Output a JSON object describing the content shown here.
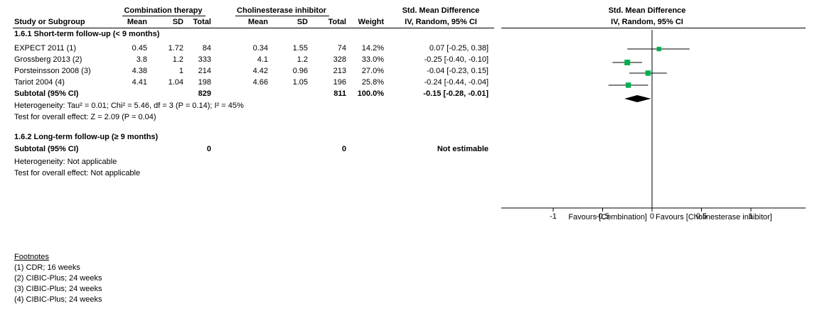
{
  "header": {
    "group1": "Combination therapy",
    "group2": "Cholinesterase inhibitor",
    "effect_top": "Std. Mean Difference",
    "effect_sub": "IV, Random, 95% CI",
    "plot_top": "Std. Mean Difference",
    "plot_sub": "IV, Random, 95% CI",
    "study_col": "Study or Subgroup",
    "mean": "Mean",
    "sd": "SD",
    "total": "Total",
    "weight": "Weight"
  },
  "subgroups": [
    {
      "title": "1.6.1 Short-term follow-up (< 9 months)",
      "studies": [
        {
          "name": "EXPECT 2011 (1)",
          "m1": "0.45",
          "sd1": "1.72",
          "n1": "84",
          "m2": "0.34",
          "sd2": "1.55",
          "n2": "74",
          "weight": "14.2%",
          "ci": "0.07 [-0.25, 0.38]"
        },
        {
          "name": "Grossberg 2013 (2)",
          "m1": "3.8",
          "sd1": "1.2",
          "n1": "333",
          "m2": "4.1",
          "sd2": "1.2",
          "n2": "328",
          "weight": "33.0%",
          "ci": "-0.25 [-0.40, -0.10]"
        },
        {
          "name": "Porsteinsson 2008 (3)",
          "m1": "4.38",
          "sd1": "1",
          "n1": "214",
          "m2": "4.42",
          "sd2": "0.96",
          "n2": "213",
          "weight": "27.0%",
          "ci": "-0.04 [-0.23, 0.15]"
        },
        {
          "name": "Tariot 2004 (4)",
          "m1": "4.41",
          "sd1": "1.04",
          "n1": "198",
          "m2": "4.66",
          "sd2": "1.05",
          "n2": "196",
          "weight": "25.8%",
          "ci": "-0.24 [-0.44, -0.04]"
        }
      ],
      "subtotal": {
        "label": "Subtotal (95% CI)",
        "n1": "829",
        "n2": "811",
        "weight": "100.0%",
        "ci": "-0.15 [-0.28, -0.01]"
      },
      "heterogeneity": "Heterogeneity: Tau² = 0.01; Chi² = 5.46, df = 3 (P = 0.14); I² = 45%",
      "overall": "Test for overall effect: Z = 2.09 (P = 0.04)"
    },
    {
      "title": "1.6.2 Long-term follow-up (≥ 9 months)",
      "subtotal": {
        "label": "Subtotal (95% CI)",
        "n1": "0",
        "n2": "0",
        "ci": "Not estimable"
      },
      "heterogeneity": "Heterogeneity: Not applicable",
      "overall": "Test for overall effect: Not applicable"
    }
  ],
  "axis": {
    "ticks": [
      "-1",
      "-0.5",
      "0",
      "0.5",
      "1"
    ],
    "favours_left": "Favours [Combination]",
    "favours_right": "Favours [Cholinesterase inhibitor]"
  },
  "footnotes": {
    "title": "Footnotes",
    "items": [
      "(1) CDR; 16 weeks",
      "(2) CIBIC-Plus; 24 weeks",
      "(3) CIBIC-Plus; 24 weeks",
      "(4) CIBIC-Plus; 24 weeks"
    ]
  },
  "chart_data": {
    "type": "scatter",
    "xlim": [
      -1.5,
      1.5
    ],
    "xticks": [
      -1,
      -0.5,
      0,
      0.5,
      1
    ],
    "studies": [
      {
        "name": "EXPECT 2011 (1)",
        "smd": 0.07,
        "lo": -0.25,
        "hi": 0.38,
        "weight": 14.2
      },
      {
        "name": "Grossberg 2013 (2)",
        "smd": -0.25,
        "lo": -0.4,
        "hi": -0.1,
        "weight": 33.0
      },
      {
        "name": "Porsteinsson 2008 (3)",
        "smd": -0.04,
        "lo": -0.23,
        "hi": 0.15,
        "weight": 27.0
      },
      {
        "name": "Tariot 2004 (4)",
        "smd": -0.24,
        "lo": -0.44,
        "hi": -0.04,
        "weight": 25.8
      }
    ],
    "subtotal": {
      "smd": -0.15,
      "lo": -0.28,
      "hi": -0.01
    },
    "colors": {
      "square": "#00b050",
      "line": "#000000"
    }
  }
}
